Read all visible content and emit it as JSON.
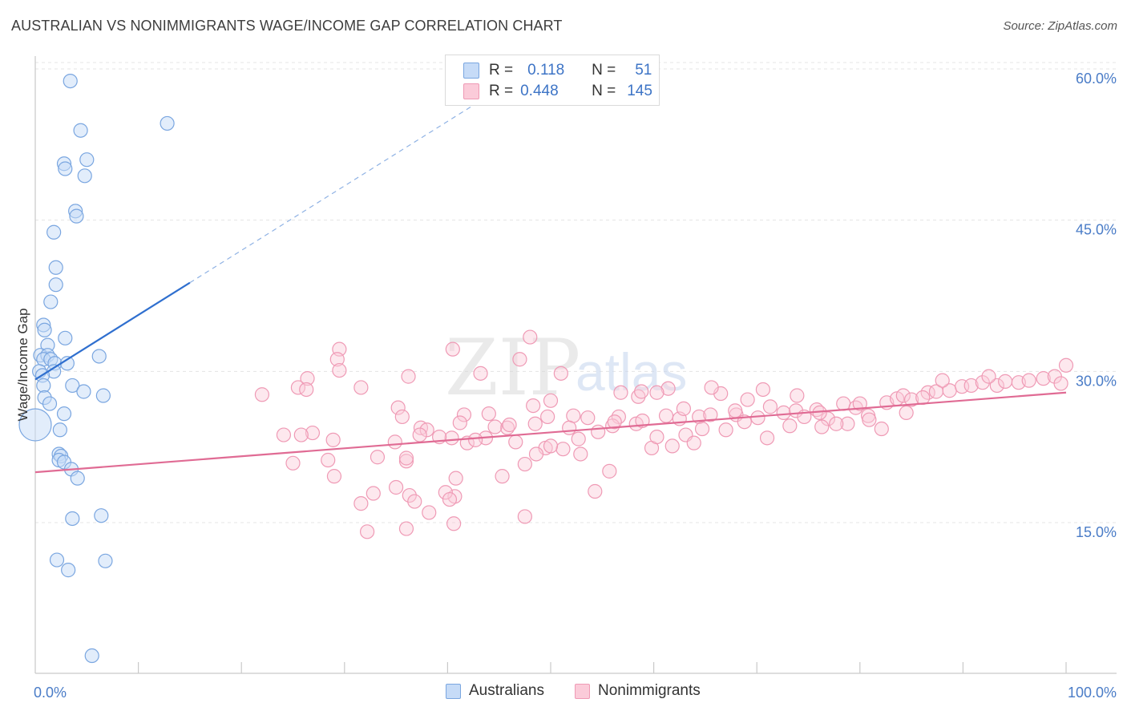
{
  "header": {
    "title": "AUSTRALIAN VS NONIMMIGRANTS WAGE/INCOME GAP CORRELATION CHART",
    "source": "Source: ZipAtlas.com"
  },
  "watermark": {
    "zip": "ZIP",
    "atlas": "atlas"
  },
  "legend_top": {
    "rows": [
      {
        "r_label": "R =",
        "r_value": "0.118",
        "n_label": "N =",
        "n_value": "51",
        "color": "#c6dbf7",
        "border": "#7aa6e0"
      },
      {
        "r_label": "R =",
        "r_value": "0.448",
        "n_label": "N =",
        "n_value": "145",
        "color": "#fbcbd9",
        "border": "#ef9ab5"
      }
    ]
  },
  "legend_bottom": {
    "items": [
      {
        "label": "Australians",
        "color": "#c6dbf7",
        "border": "#7aa6e0"
      },
      {
        "label": "Nonimmigrants",
        "color": "#fbcbd9",
        "border": "#ef9ab5"
      }
    ]
  },
  "chart_data": {
    "type": "scatter",
    "title": "AUSTRALIAN VS NONIMMIGRANTS WAGE/INCOME GAP CORRELATION CHART",
    "xlabel": "",
    "ylabel": "Wage/Income Gap",
    "xlim": [
      0,
      100
    ],
    "ylim": [
      0,
      64
    ],
    "x_ticks": [
      {
        "value": 0,
        "label": "0.0%"
      },
      {
        "value": 100,
        "label": "100.0%"
      }
    ],
    "x_minor_ticks": [
      10,
      20,
      30,
      40,
      50,
      60,
      70,
      80,
      90
    ],
    "y_ticks": [
      {
        "value": 15,
        "label": "15.0%"
      },
      {
        "value": 30,
        "label": "30.0%"
      },
      {
        "value": 45,
        "label": "45.0%"
      },
      {
        "value": 60,
        "label": "60.0%"
      }
    ],
    "grid": true,
    "legend_position": "bottom",
    "series": [
      {
        "name": "Australians",
        "color": "#7aa6e0",
        "fill": "#c6dbf7",
        "line_color": "#2f6fcf",
        "trend": {
          "x0": 0,
          "y0": 29.2,
          "x1": 15,
          "y1": 38.8,
          "dash_to_x": 45,
          "dash_to_y": 58.0
        },
        "points": [
          [
            3.4,
            58.8
          ],
          [
            12.8,
            54.6
          ],
          [
            4.4,
            53.9
          ],
          [
            5.0,
            51.0
          ],
          [
            2.8,
            50.6
          ],
          [
            2.9,
            50.1
          ],
          [
            4.8,
            49.4
          ],
          [
            3.9,
            45.9
          ],
          [
            4.0,
            45.4
          ],
          [
            1.8,
            43.8
          ],
          [
            2.0,
            40.3
          ],
          [
            2.0,
            38.6
          ],
          [
            1.5,
            36.9
          ],
          [
            0.8,
            34.6
          ],
          [
            0.9,
            34.1
          ],
          [
            2.9,
            33.3
          ],
          [
            1.2,
            32.6
          ],
          [
            0.5,
            31.6
          ],
          [
            1.2,
            31.6
          ],
          [
            0.8,
            31.2
          ],
          [
            1.5,
            31.2
          ],
          [
            1.9,
            30.8
          ],
          [
            3.1,
            30.8
          ],
          [
            6.2,
            31.5
          ],
          [
            0.4,
            30.0
          ],
          [
            1.8,
            30.0
          ],
          [
            0.7,
            29.6
          ],
          [
            0.8,
            28.6
          ],
          [
            3.6,
            28.6
          ],
          [
            4.7,
            28.0
          ],
          [
            0.9,
            27.4
          ],
          [
            6.6,
            27.6
          ],
          [
            1.4,
            26.8
          ],
          [
            2.8,
            25.8
          ],
          [
            0.0,
            24.7
          ],
          [
            2.4,
            24.2
          ],
          [
            2.3,
            21.8
          ],
          [
            2.5,
            21.6
          ],
          [
            2.3,
            21.2
          ],
          [
            2.8,
            21.0
          ],
          [
            3.5,
            20.3
          ],
          [
            4.1,
            19.4
          ],
          [
            3.6,
            15.4
          ],
          [
            6.4,
            15.7
          ],
          [
            2.1,
            11.3
          ],
          [
            3.2,
            10.3
          ],
          [
            6.8,
            11.2
          ],
          [
            5.5,
            1.8
          ]
        ],
        "big_point": [
          0.0,
          24.7
        ]
      },
      {
        "name": "Nonimmigrants",
        "color": "#ef9ab5",
        "fill": "#fbcbd9",
        "line_color": "#e06b94",
        "trend": {
          "x0": 0,
          "y0": 20.0,
          "x1": 100,
          "y1": 27.9
        },
        "points": [
          [
            48.0,
            33.4
          ],
          [
            29.5,
            32.2
          ],
          [
            40.5,
            32.2
          ],
          [
            29.3,
            31.2
          ],
          [
            29.5,
            30.1
          ],
          [
            47.0,
            31.2
          ],
          [
            51.0,
            29.8
          ],
          [
            43.2,
            29.8
          ],
          [
            26.4,
            29.3
          ],
          [
            36.2,
            29.5
          ],
          [
            61.4,
            28.3
          ],
          [
            22.0,
            27.7
          ],
          [
            25.5,
            28.4
          ],
          [
            26.3,
            28.2
          ],
          [
            31.6,
            28.4
          ],
          [
            56.8,
            27.9
          ],
          [
            60.3,
            27.9
          ],
          [
            58.5,
            27.5
          ],
          [
            50.0,
            27.1
          ],
          [
            58.8,
            28.0
          ],
          [
            48.3,
            26.6
          ],
          [
            35.2,
            26.4
          ],
          [
            41.6,
            25.7
          ],
          [
            35.6,
            25.5
          ],
          [
            49.7,
            25.5
          ],
          [
            52.2,
            25.6
          ],
          [
            56.6,
            25.5
          ],
          [
            48.5,
            24.8
          ],
          [
            44.0,
            25.8
          ],
          [
            45.8,
            24.4
          ],
          [
            37.4,
            24.4
          ],
          [
            38.0,
            24.2
          ],
          [
            37.3,
            23.7
          ],
          [
            26.9,
            23.9
          ],
          [
            24.1,
            23.7
          ],
          [
            25.8,
            23.7
          ],
          [
            28.9,
            23.2
          ],
          [
            34.9,
            23.0
          ],
          [
            41.9,
            22.9
          ],
          [
            40.4,
            23.4
          ],
          [
            43.7,
            23.4
          ],
          [
            49.5,
            22.4
          ],
          [
            51.2,
            22.3
          ],
          [
            52.9,
            21.8
          ],
          [
            48.6,
            21.8
          ],
          [
            47.5,
            20.8
          ],
          [
            45.3,
            19.6
          ],
          [
            36.0,
            21.1
          ],
          [
            36.0,
            21.4
          ],
          [
            28.4,
            21.2
          ],
          [
            25.0,
            20.9
          ],
          [
            33.2,
            21.5
          ],
          [
            29.0,
            19.6
          ],
          [
            40.8,
            19.4
          ],
          [
            35.0,
            18.5
          ],
          [
            32.8,
            17.9
          ],
          [
            36.3,
            17.7
          ],
          [
            40.7,
            17.6
          ],
          [
            39.8,
            18.0
          ],
          [
            36.8,
            17.1
          ],
          [
            40.2,
            17.3
          ],
          [
            31.6,
            16.9
          ],
          [
            38.2,
            16.0
          ],
          [
            40.6,
            14.9
          ],
          [
            47.5,
            15.6
          ],
          [
            36.0,
            14.4
          ],
          [
            32.2,
            14.1
          ],
          [
            54.3,
            18.1
          ],
          [
            55.7,
            20.1
          ],
          [
            59.8,
            22.4
          ],
          [
            60.3,
            23.5
          ],
          [
            58.3,
            24.8
          ],
          [
            56.0,
            24.6
          ],
          [
            54.6,
            24.0
          ],
          [
            63.1,
            23.7
          ],
          [
            62.5,
            25.3
          ],
          [
            64.4,
            25.5
          ],
          [
            64.7,
            24.3
          ],
          [
            67.0,
            24.2
          ],
          [
            68.0,
            25.7
          ],
          [
            68.8,
            25.0
          ],
          [
            70.1,
            25.4
          ],
          [
            71.3,
            26.5
          ],
          [
            72.6,
            25.9
          ],
          [
            73.8,
            26.1
          ],
          [
            74.6,
            25.5
          ],
          [
            75.8,
            26.2
          ],
          [
            76.9,
            25.3
          ],
          [
            78.4,
            26.8
          ],
          [
            79.6,
            26.4
          ],
          [
            80.8,
            25.6
          ],
          [
            82.6,
            26.9
          ],
          [
            83.6,
            27.3
          ],
          [
            84.2,
            27.6
          ],
          [
            85.0,
            27.2
          ],
          [
            86.6,
            27.9
          ],
          [
            87.4,
            28.0
          ],
          [
            88.7,
            28.1
          ],
          [
            89.9,
            28.5
          ],
          [
            90.8,
            28.6
          ],
          [
            91.9,
            28.9
          ],
          [
            93.3,
            28.6
          ],
          [
            94.1,
            29.0
          ],
          [
            95.4,
            28.9
          ],
          [
            96.4,
            29.1
          ],
          [
            97.8,
            29.3
          ],
          [
            98.9,
            29.5
          ],
          [
            99.5,
            28.8
          ],
          [
            100.0,
            30.6
          ],
          [
            92.5,
            29.5
          ],
          [
            88.0,
            29.1
          ],
          [
            86.1,
            27.4
          ],
          [
            84.5,
            25.9
          ],
          [
            82.1,
            24.3
          ],
          [
            80.0,
            26.8
          ],
          [
            78.8,
            24.8
          ],
          [
            76.3,
            24.5
          ],
          [
            73.2,
            24.6
          ],
          [
            71.0,
            23.4
          ],
          [
            69.1,
            27.2
          ],
          [
            66.5,
            27.8
          ],
          [
            65.6,
            28.4
          ],
          [
            62.9,
            26.3
          ],
          [
            61.2,
            25.6
          ],
          [
            58.9,
            25.1
          ],
          [
            56.2,
            25.0
          ],
          [
            53.6,
            25.4
          ],
          [
            52.7,
            23.3
          ],
          [
            51.8,
            24.4
          ],
          [
            50.0,
            22.6
          ],
          [
            46.6,
            23.0
          ],
          [
            46.0,
            24.7
          ],
          [
            44.6,
            24.5
          ],
          [
            42.7,
            23.2
          ],
          [
            41.2,
            24.9
          ],
          [
            39.2,
            23.5
          ],
          [
            63.9,
            22.9
          ],
          [
            65.5,
            25.7
          ],
          [
            61.8,
            22.6
          ],
          [
            67.9,
            26.1
          ],
          [
            70.6,
            28.2
          ],
          [
            73.9,
            27.6
          ],
          [
            76.1,
            25.9
          ],
          [
            77.7,
            24.8
          ],
          [
            80.9,
            25.2
          ]
        ]
      }
    ]
  }
}
